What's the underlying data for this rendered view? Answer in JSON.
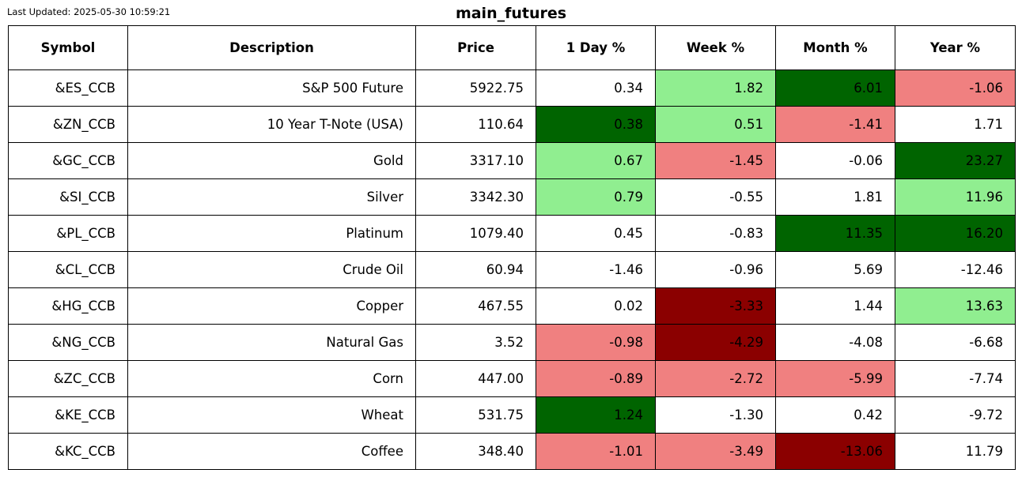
{
  "header": {
    "updated": "Last Updated: 2025-05-30 10:59:21",
    "title": "main_futures"
  },
  "table": {
    "columns": [
      "Symbol",
      "Description",
      "Price",
      "1 Day %",
      "Week %",
      "Month %",
      "Year %"
    ],
    "rows": [
      [
        "&ES_CCB",
        "S&P 500 Future",
        "5922.75",
        "0.34",
        "1.82",
        "6.01",
        "-1.06"
      ],
      [
        "&ZN_CCB",
        "10 Year T-Note (USA)",
        "110.64",
        "0.38",
        "0.51",
        "-1.41",
        "1.71"
      ],
      [
        "&GC_CCB",
        "Gold",
        "3317.10",
        "0.67",
        "-1.45",
        "-0.06",
        "23.27"
      ],
      [
        "&SI_CCB",
        "Silver",
        "3342.30",
        "0.79",
        "-0.55",
        "1.81",
        "11.96"
      ],
      [
        "&PL_CCB",
        "Platinum",
        "1079.40",
        "0.45",
        "-0.83",
        "11.35",
        "16.20"
      ],
      [
        "&CL_CCB",
        "Crude Oil",
        "60.94",
        "-1.46",
        "-0.96",
        "5.69",
        "-12.46"
      ],
      [
        "&HG_CCB",
        "Copper",
        "467.55",
        "0.02",
        "-3.33",
        "1.44",
        "13.63"
      ],
      [
        "&NG_CCB",
        "Natural Gas",
        "3.52",
        "-0.98",
        "-4.29",
        "-4.08",
        "-6.68"
      ],
      [
        "&ZC_CCB",
        "Corn",
        "447.00",
        "-0.89",
        "-2.72",
        "-5.99",
        "-7.74"
      ],
      [
        "&KE_CCB",
        "Wheat",
        "531.75",
        "1.24",
        "-1.30",
        "0.42",
        "-9.72"
      ],
      [
        "&KC_CCB",
        "Coffee",
        "348.40",
        "-1.01",
        "-3.49",
        "-13.06",
        "11.79"
      ]
    ],
    "cell_colors": [
      [
        "#ffffff",
        "#ffffff",
        "#ffffff",
        "#ffffff",
        "#90ee90",
        "#006400",
        "#f08080"
      ],
      [
        "#ffffff",
        "#ffffff",
        "#ffffff",
        "#006400",
        "#90ee90",
        "#f08080",
        "#ffffff"
      ],
      [
        "#ffffff",
        "#ffffff",
        "#ffffff",
        "#90ee90",
        "#f08080",
        "#ffffff",
        "#006400"
      ],
      [
        "#ffffff",
        "#ffffff",
        "#ffffff",
        "#90ee90",
        "#ffffff",
        "#ffffff",
        "#90ee90"
      ],
      [
        "#ffffff",
        "#ffffff",
        "#ffffff",
        "#ffffff",
        "#ffffff",
        "#006400",
        "#006400"
      ],
      [
        "#ffffff",
        "#ffffff",
        "#ffffff",
        "#ffffff",
        "#ffffff",
        "#ffffff",
        "#ffffff"
      ],
      [
        "#ffffff",
        "#ffffff",
        "#ffffff",
        "#ffffff",
        "#8b0000",
        "#ffffff",
        "#90ee90"
      ],
      [
        "#ffffff",
        "#ffffff",
        "#ffffff",
        "#f08080",
        "#8b0000",
        "#ffffff",
        "#ffffff"
      ],
      [
        "#ffffff",
        "#ffffff",
        "#ffffff",
        "#f08080",
        "#f08080",
        "#f08080",
        "#ffffff"
      ],
      [
        "#ffffff",
        "#ffffff",
        "#ffffff",
        "#006400",
        "#ffffff",
        "#ffffff",
        "#ffffff"
      ],
      [
        "#ffffff",
        "#ffffff",
        "#ffffff",
        "#f08080",
        "#f08080",
        "#8b0000",
        "#ffffff"
      ]
    ]
  }
}
